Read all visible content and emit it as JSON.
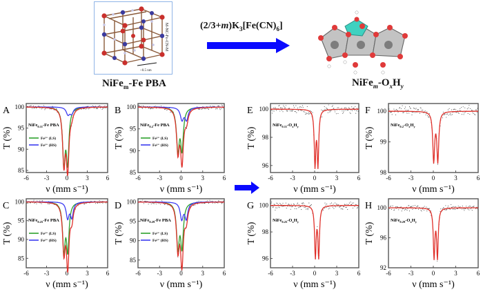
{
  "header": {
    "left_label": {
      "base": "NiFe",
      "sub": "m",
      "rest": "-Fe PBA"
    },
    "right_label": {
      "base": "NiFe",
      "sub": "m",
      "mid": "-O",
      "sub2": "x",
      "h": "H",
      "sub3": "y"
    },
    "reaction": {
      "pre": "(2/3+",
      "italic": "m",
      "post": ")K",
      "sub1": "3",
      "mid": "[Fe(CN)",
      "sub2": "6",
      "end": "]"
    },
    "structure_left_annotation": "M-NC-Fe-CN-M",
    "scale_bar": "~0.5 nm",
    "arrow_color": "#0a0aff"
  },
  "colors": {
    "ls": "#2ca02c",
    "hs": "#3b3bf0",
    "fit": "#e0302a",
    "data": "#444444",
    "frame": "#555555"
  },
  "chart_data": [
    {
      "panel": "A",
      "type": "line",
      "xlabel": "ν (mm s⁻¹)",
      "ylabel": "T (%)",
      "xlim": [
        -6,
        6
      ],
      "ylim": [
        84.5,
        100.8
      ],
      "xticks": [
        -6,
        -3,
        0,
        3,
        6
      ],
      "yticks": [
        85,
        90,
        95,
        100
      ],
      "sample": {
        "base": "NiFe",
        "sub": "0.11",
        "rest": "-Fe PBA"
      },
      "legend": [
        {
          "label": "Fe³⁺ (LS)",
          "color_key": "ls"
        },
        {
          "label": "Fe³⁺ (HS)",
          "color_key": "hs"
        }
      ],
      "components": [
        {
          "name": "LS",
          "color_key": "ls",
          "peaks": [
            {
              "x": -0.45,
              "depth": 12.8,
              "w": 0.45
            },
            {
              "x": 0.1,
              "depth": 12.5,
              "w": 0.45
            }
          ]
        },
        {
          "name": "HS",
          "color_key": "hs",
          "peaks": [
            {
              "x": 0.15,
              "depth": 1.7,
              "w": 0.6
            },
            {
              "x": 0.7,
              "depth": 1.5,
              "w": 0.6
            }
          ]
        }
      ],
      "noise": 0.35
    },
    {
      "panel": "B",
      "type": "line",
      "xlabel": "ν (mm s⁻¹)",
      "ylabel": "T (%)",
      "xlim": [
        -6,
        6
      ],
      "ylim": [
        85,
        100.8
      ],
      "xticks": [
        -6,
        -3,
        0,
        3,
        6
      ],
      "yticks": [
        85,
        90,
        95,
        100
      ],
      "sample": {
        "base": "NiFe",
        "sub": "0.2",
        "rest": "-Fe PBA"
      },
      "legend": [
        {
          "label": "Fe³⁺ (LS)",
          "color_key": "ls"
        },
        {
          "label": "Fe³⁺ (HS)",
          "color_key": "hs"
        }
      ],
      "components": [
        {
          "name": "LS",
          "color_key": "ls",
          "peaks": [
            {
              "x": -0.45,
              "depth": 9.6,
              "w": 0.45
            },
            {
              "x": 0.12,
              "depth": 9.3,
              "w": 0.45
            }
          ]
        },
        {
          "name": "HS",
          "color_key": "hs",
          "peaks": [
            {
              "x": 0.12,
              "depth": 2.8,
              "w": 0.55
            },
            {
              "x": 0.75,
              "depth": 2.8,
              "w": 0.55
            }
          ]
        }
      ],
      "noise": 0.35
    },
    {
      "panel": "C",
      "type": "line",
      "xlabel": "ν (mm s⁻¹)",
      "ylabel": "T (%)",
      "xlim": [
        -6,
        6
      ],
      "ylim": [
        82.5,
        100.8
      ],
      "xticks": [
        -6,
        -3,
        0,
        3,
        6
      ],
      "yticks": [
        85,
        90,
        95,
        100
      ],
      "sample": {
        "base": "NiFe",
        "sub": "0.25",
        "rest": "-Fe PBA"
      },
      "legend": [
        {
          "label": "Fe³⁺ (LS)",
          "color_key": "ls"
        },
        {
          "label": "Fe³⁺ (HS)",
          "color_key": "hs"
        }
      ],
      "components": [
        {
          "name": "LS",
          "color_key": "ls",
          "peaks": [
            {
              "x": -0.45,
              "depth": 12.5,
              "w": 0.45
            },
            {
              "x": 0.12,
              "depth": 12.3,
              "w": 0.45
            }
          ]
        },
        {
          "name": "HS",
          "color_key": "hs",
          "peaks": [
            {
              "x": 0.1,
              "depth": 4.2,
              "w": 0.5
            },
            {
              "x": 0.72,
              "depth": 4.0,
              "w": 0.5
            }
          ]
        }
      ],
      "noise": 0.35
    },
    {
      "panel": "D",
      "type": "line",
      "xlabel": "ν (mm s⁻¹)",
      "ylabel": "T (%)",
      "xlim": [
        -6,
        6
      ],
      "ylim": [
        83,
        100.8
      ],
      "xticks": [
        -6,
        -3,
        0,
        3,
        6
      ],
      "yticks": [
        85,
        90,
        95,
        100
      ],
      "sample": {
        "base": "NiFe",
        "sub": "0.29",
        "rest": "-Fe PBA"
      },
      "legend": [
        {
          "label": "Fe³⁺ (LS)",
          "color_key": "ls"
        },
        {
          "label": "Fe³⁺ (HS)",
          "color_key": "hs"
        }
      ],
      "components": [
        {
          "name": "LS",
          "color_key": "ls",
          "peaks": [
            {
              "x": -0.45,
              "depth": 11.5,
              "w": 0.45
            },
            {
              "x": 0.12,
              "depth": 11.2,
              "w": 0.45
            }
          ]
        },
        {
          "name": "HS",
          "color_key": "hs",
          "peaks": [
            {
              "x": 0.08,
              "depth": 4.3,
              "w": 0.5
            },
            {
              "x": 0.72,
              "depth": 4.2,
              "w": 0.5
            }
          ]
        }
      ],
      "noise": 0.35
    },
    {
      "panel": "E",
      "type": "line",
      "xlabel": "ν (mm s⁻¹)",
      "ylabel": "T (%)",
      "xlim": [
        -6,
        6
      ],
      "ylim": [
        95.5,
        100.4
      ],
      "xticks": [
        -6,
        -3,
        0,
        3,
        6
      ],
      "yticks": [
        96,
        98,
        100
      ],
      "sample": {
        "base": "NiFe",
        "sub": "0.11",
        "rest": "-O",
        "sub2": "x",
        "h": "H",
        "sub3": "y"
      },
      "legend": [],
      "components": [
        {
          "name": "fit",
          "color_key": "fit",
          "peaks": [
            {
              "x": 0.05,
              "depth": 3.9,
              "w": 0.25
            },
            {
              "x": 0.45,
              "depth": 3.9,
              "w": 0.25
            }
          ]
        }
      ],
      "noise": 0.25
    },
    {
      "panel": "F",
      "type": "line",
      "xlabel": "ν (mm s⁻¹)",
      "ylabel": "T (%)",
      "xlim": [
        -6,
        6
      ],
      "ylim": [
        98,
        100.25
      ],
      "xticks": [
        -6,
        -3,
        0,
        3,
        6
      ],
      "yticks": [
        98,
        99,
        100
      ],
      "sample": {
        "base": "NiFe",
        "sub": "0.2",
        "rest": "-O",
        "sub2": "x",
        "h": "H",
        "sub3": "y"
      },
      "legend": [],
      "components": [
        {
          "name": "fit",
          "color_key": "fit",
          "peaks": [
            {
              "x": 0.05,
              "depth": 1.6,
              "w": 0.3
            },
            {
              "x": 0.6,
              "depth": 1.6,
              "w": 0.3
            }
          ]
        }
      ],
      "noise": 0.12
    },
    {
      "panel": "G",
      "type": "line",
      "xlabel": "ν (mm s⁻¹)",
      "ylabel": "T (%)",
      "xlim": [
        -6,
        6
      ],
      "ylim": [
        95.3,
        100.5
      ],
      "xticks": [
        -6,
        -3,
        0,
        3,
        6
      ],
      "yticks": [
        96,
        98,
        100
      ],
      "sample": {
        "base": "NiFe",
        "sub": "0.25",
        "rest": "-O",
        "sub2": "x",
        "h": "H",
        "sub3": "y"
      },
      "legend": [],
      "components": [
        {
          "name": "fit",
          "color_key": "fit",
          "peaks": [
            {
              "x": 0.1,
              "depth": 3.8,
              "w": 0.25
            },
            {
              "x": 0.55,
              "depth": 3.8,
              "w": 0.25
            }
          ]
        }
      ],
      "noise": 0.25
    },
    {
      "panel": "H",
      "type": "line",
      "xlabel": "ν (mm s⁻¹)",
      "ylabel": "T (%)",
      "xlim": [
        -6,
        6
      ],
      "ylim": [
        92,
        101.2
      ],
      "xticks": [
        -6,
        -3,
        0,
        3,
        6
      ],
      "yticks": [
        92,
        96,
        100
      ],
      "sample": {
        "base": "NiFe",
        "sub": "0.29",
        "rest": "-O",
        "sub2": "x",
        "h": "H",
        "sub3": "y"
      },
      "legend": [],
      "components": [
        {
          "name": "fit",
          "color_key": "fit",
          "peaks": [
            {
              "x": 0.1,
              "depth": 6.5,
              "w": 0.25
            },
            {
              "x": 0.55,
              "depth": 6.5,
              "w": 0.25
            }
          ]
        }
      ],
      "noise": 0.3
    }
  ]
}
